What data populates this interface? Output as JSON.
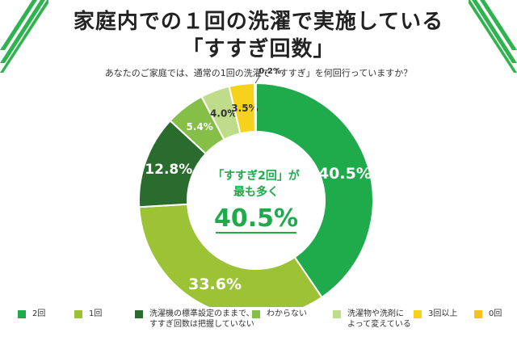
{
  "header": {
    "title_line1": "家庭内での１回の洗濯で実施している",
    "title_line2": "「すすぎ回数」",
    "question": "あなたのご家庭では、通常の1回の洗濯で「すすぎ」を何回行っていますか？"
  },
  "center": {
    "line1": "「すすぎ2回」が",
    "line2": "最も多く",
    "value": "40.5%"
  },
  "chart_data": {
    "type": "pie",
    "donut": true,
    "categories": [
      "2回",
      "1回",
      "洗濯機の標準設定のままで、すすぎ回数は把握していない",
      "わからない",
      "洗濯物や洗剤によって変えている",
      "3回以上",
      "0回"
    ],
    "values": [
      40.5,
      33.6,
      12.8,
      5.4,
      4.0,
      3.5,
      0.2
    ],
    "labels": [
      "40.5%",
      "33.6%",
      "12.8%",
      "5.4%",
      "4.0%",
      "3.5%",
      "0.2%"
    ],
    "colors": [
      "#1faa4b",
      "#9cc236",
      "#2a6b2e",
      "#86bf48",
      "#bfdc8b",
      "#f6d21d",
      "#f6c11a"
    ]
  },
  "legend": [
    {
      "label": "2回",
      "color": "#1faa4b"
    },
    {
      "label": "1回",
      "color": "#9cc236"
    },
    {
      "label": "洗濯機の標準設定のままで、\nすすぎ回数は把握していない",
      "color": "#2a6b2e"
    },
    {
      "label": "わからない",
      "color": "#86bf48"
    },
    {
      "label": "洗濯物や洗剤に\nよって変えている",
      "color": "#bfdc8b"
    },
    {
      "label": "3回以上",
      "color": "#f6d21d"
    },
    {
      "label": "0回",
      "color": "#f6c11a"
    }
  ]
}
